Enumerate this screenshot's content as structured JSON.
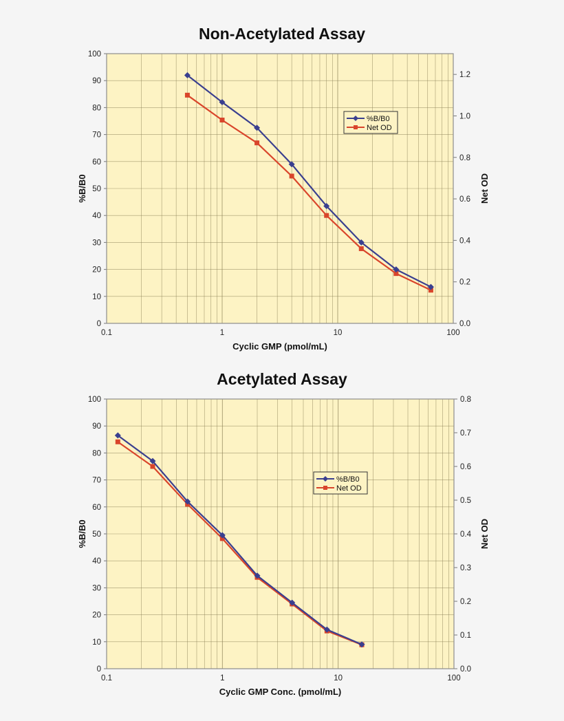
{
  "chart_data": [
    {
      "type": "line",
      "title": "Non-Acetylated Assay",
      "xlabel": "Cyclic GMP (pmol/mL)",
      "ylabel": "%B/B0",
      "y2label": "Net OD",
      "xscale": "log",
      "xlim": [
        0.1,
        100
      ],
      "ylim": [
        0,
        100
      ],
      "y2lim": [
        0,
        1.3
      ],
      "x_ticks": [
        "0.1",
        "1",
        "10",
        "100"
      ],
      "y_ticks": [
        "0",
        "10",
        "20",
        "30",
        "40",
        "50",
        "60",
        "70",
        "80",
        "90",
        "100"
      ],
      "y2_ticks": [
        "0.0",
        "0.2",
        "0.4",
        "0.6",
        "0.8",
        "1.0",
        "1.2"
      ],
      "grid": true,
      "legend_position": "upper-right-inside",
      "x": [
        0.5,
        1,
        2,
        4,
        8,
        16,
        32,
        64
      ],
      "series": [
        {
          "name": "%B/B0",
          "axis": "left",
          "color": "#3a3f8f",
          "marker": "diamond",
          "values": [
            92,
            82,
            72.5,
            59,
            43.5,
            30,
            20,
            13.5
          ]
        },
        {
          "name": "Net OD",
          "axis": "right",
          "color": "#d9452b",
          "marker": "square",
          "values": [
            1.1,
            0.98,
            0.87,
            0.71,
            0.52,
            0.36,
            0.24,
            0.16
          ]
        }
      ]
    },
    {
      "type": "line",
      "title": "Acetylated Assay",
      "xlabel": "Cyclic GMP Conc. (pmol/mL)",
      "ylabel": "%B/B0",
      "y2label": "Net OD",
      "xscale": "log",
      "xlim": [
        0.1,
        100
      ],
      "ylim": [
        0,
        100
      ],
      "y2lim": [
        0,
        0.8
      ],
      "x_ticks": [
        "0.1",
        "1",
        "10",
        "100"
      ],
      "y_ticks": [
        "0",
        "10",
        "20",
        "30",
        "40",
        "50",
        "60",
        "70",
        "80",
        "90",
        "100"
      ],
      "y2_ticks": [
        "0.0",
        "0.1",
        "0.2",
        "0.3",
        "0.4",
        "0.5",
        "0.6",
        "0.7",
        "0.8"
      ],
      "grid": true,
      "legend_position": "upper-right-inside",
      "x": [
        0.125,
        0.25,
        0.5,
        1,
        2,
        4,
        8,
        16
      ],
      "series": [
        {
          "name": "%B/B0",
          "axis": "left",
          "color": "#3a3f8f",
          "marker": "diamond",
          "values": [
            86.5,
            77,
            62,
            49.5,
            34.5,
            24.5,
            14.5,
            9
          ]
        },
        {
          "name": "Net OD",
          "axis": "right",
          "color": "#d9452b",
          "marker": "square",
          "values": [
            0.673,
            0.6,
            0.488,
            0.386,
            0.271,
            0.192,
            0.112,
            0.071
          ]
        }
      ]
    }
  ],
  "colors": {
    "plot_bg": "#fdf3c4",
    "grid": "#8a7f55",
    "page_bg": "#f5f5f5"
  }
}
